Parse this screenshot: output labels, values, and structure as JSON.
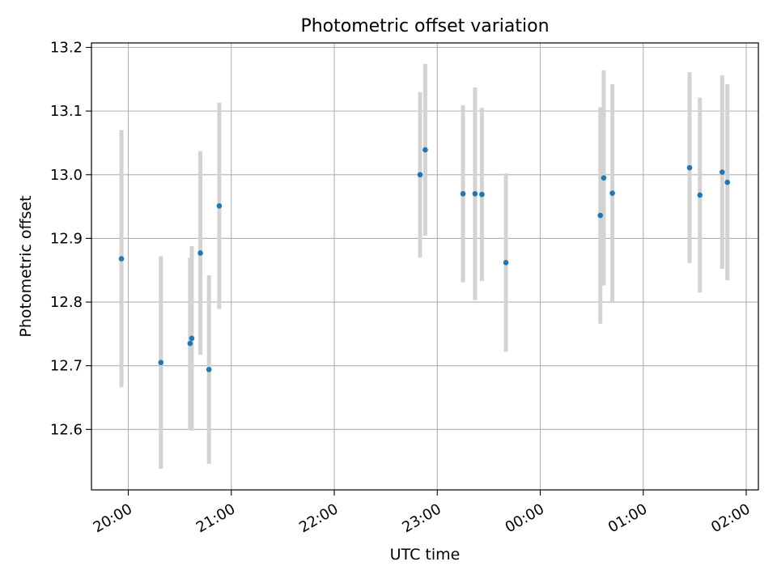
{
  "chart_data": {
    "type": "scatter",
    "title": "Photometric offset variation",
    "xlabel": "UTC time",
    "ylabel": "Photometric offset",
    "x_ticks": [
      "20:00",
      "21:00",
      "22:00",
      "23:00",
      "00:00",
      "01:00",
      "02:00"
    ],
    "y_ticks": [
      "12.6",
      "12.7",
      "12.8",
      "12.9",
      "13.0",
      "13.1",
      "13.2"
    ],
    "x_axis": "time (HH:MM, UTC), from about 19:41 on the first day to about 02:07 on the next day",
    "ylim": [
      12.505,
      13.207
    ],
    "grid": true,
    "marker_color": "#1f77b4",
    "errorbar_color": "#d3d3d3",
    "series": [
      {
        "points": [
          {
            "x": "19:56",
            "y": 12.868,
            "yerr": 0.202
          },
          {
            "x": "20:19",
            "y": 12.705,
            "yerr": 0.167
          },
          {
            "x": "20:36",
            "y": 12.735,
            "yerr": 0.135
          },
          {
            "x": "20:37",
            "y": 12.743,
            "yerr": 0.145
          },
          {
            "x": "20:42",
            "y": 12.877,
            "yerr": 0.16
          },
          {
            "x": "20:47",
            "y": 12.694,
            "yerr": 0.148
          },
          {
            "x": "20:53",
            "y": 12.951,
            "yerr": 0.162
          },
          {
            "x": "22:50",
            "y": 13.0,
            "yerr": 0.13
          },
          {
            "x": "22:53",
            "y": 13.039,
            "yerr": 0.135
          },
          {
            "x": "23:15",
            "y": 12.97,
            "yerr": 0.139
          },
          {
            "x": "23:22",
            "y": 12.97,
            "yerr": 0.167
          },
          {
            "x": "23:26",
            "y": 12.969,
            "yerr": 0.136
          },
          {
            "x": "23:40",
            "y": 12.862,
            "yerr": 0.14
          },
          {
            "x": "00:35",
            "y": 12.936,
            "yerr": 0.17
          },
          {
            "x": "00:37",
            "y": 12.995,
            "yerr": 0.169
          },
          {
            "x": "00:42",
            "y": 12.971,
            "yerr": 0.171
          },
          {
            "x": "01:27",
            "y": 13.011,
            "yerr": 0.15
          },
          {
            "x": "01:33",
            "y": 12.968,
            "yerr": 0.153
          },
          {
            "x": "01:46",
            "y": 13.004,
            "yerr": 0.152
          },
          {
            "x": "01:49",
            "y": 12.988,
            "yerr": 0.154
          }
        ]
      }
    ]
  }
}
